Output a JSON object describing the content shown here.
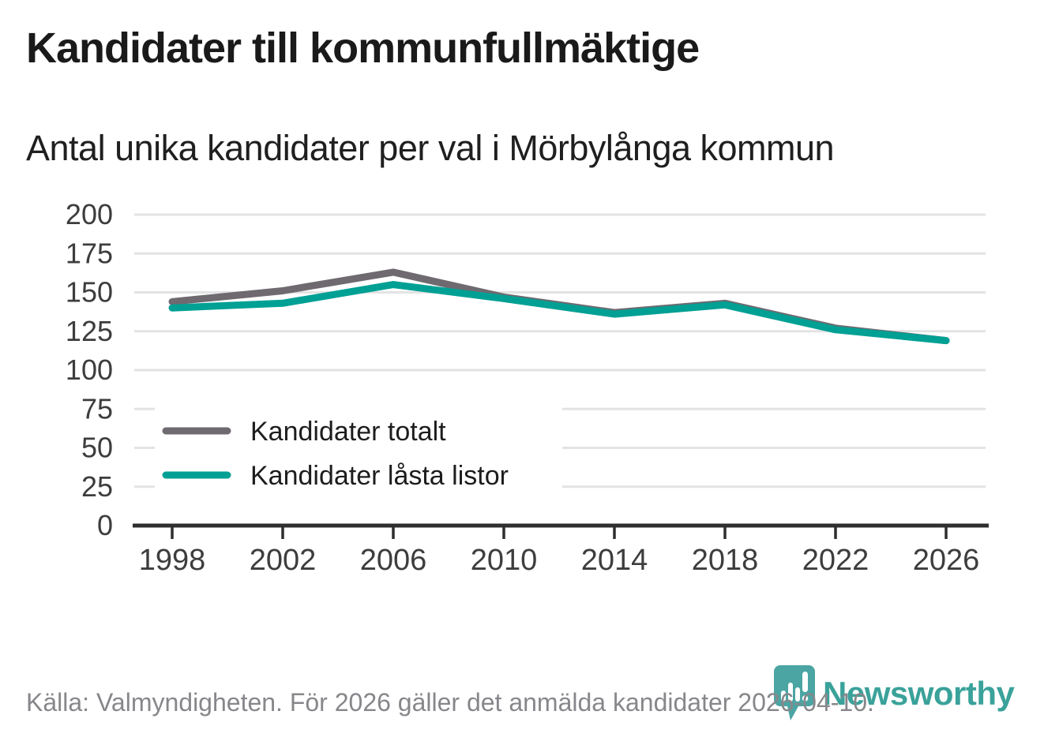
{
  "header": {
    "title": "Kandidater till kommunfullmäktige",
    "subtitle": "Antal unika kandidater per val i Mörbylånga kommun"
  },
  "chart_data": {
    "type": "line",
    "categories": [
      "1998",
      "2002",
      "2006",
      "2010",
      "2014",
      "2018",
      "2022",
      "2026"
    ],
    "series": [
      {
        "name": "Kandidater totalt",
        "color": "#6e6a70",
        "values": [
          144,
          151,
          163,
          147,
          137,
          143,
          127,
          119
        ]
      },
      {
        "name": "Kandidater låsta listor",
        "color": "#00a094",
        "values": [
          140,
          143,
          155,
          146,
          136,
          142,
          126,
          119
        ]
      }
    ],
    "title": "Kandidater till kommunfullmäktige",
    "subtitle": "Antal unika kandidater per val i Mörbylånga kommun",
    "xlabel": "",
    "ylabel": "",
    "ylim": [
      0,
      200
    ],
    "yticks": [
      0,
      25,
      50,
      75,
      100,
      125,
      150,
      175,
      200
    ],
    "grid": true,
    "legend_position": "inside-left-bottom"
  },
  "footer": {
    "source": "Källa: Valmyndigheten. För 2026 gäller det anmälda kandidater 2026-04-10."
  },
  "logo": {
    "icon": "newsworthy-pin-icon",
    "wordmark": "Newsworthy",
    "pin_color": "#4aa5a3",
    "text_color": "#3aa29a"
  },
  "style_colors": {
    "grid": "#e3e3e3",
    "axis": "#2e2e2e",
    "tick_text": "#3d3d3d",
    "legend_text": "#1d1d1d",
    "footer_text": "#87878b"
  }
}
